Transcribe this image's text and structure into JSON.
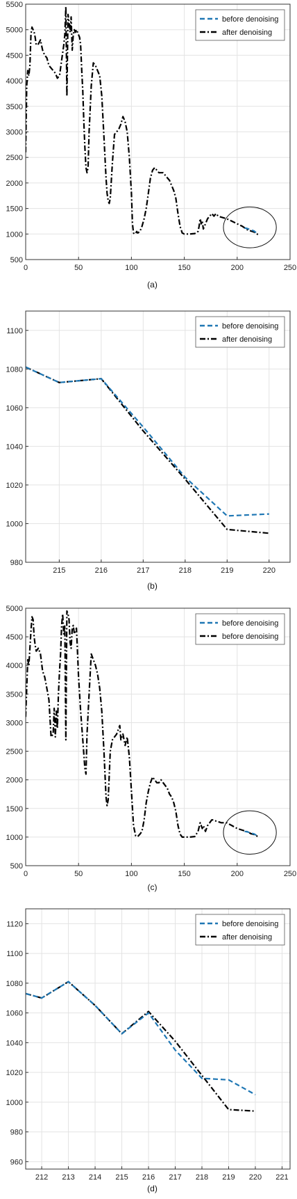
{
  "chart_data": [
    {
      "type": "line",
      "panel_label": "(a)",
      "xlim": [
        0,
        250
      ],
      "ylim": [
        500,
        5500
      ],
      "x_ticks": [
        0,
        50,
        100,
        150,
        200,
        250
      ],
      "y_ticks": [
        500,
        1000,
        1500,
        2000,
        2500,
        3000,
        3500,
        4000,
        4500,
        5000,
        5500
      ],
      "grid": true,
      "legend_position": "top-right",
      "annotation": "circle around x≈200–220",
      "series": [
        {
          "name": "before denoising",
          "color": "#1f77b4",
          "style": "dashed",
          "x": [
            207,
            210,
            213,
            216,
            219,
            220
          ],
          "y": [
            1120,
            1105,
            1080,
            1060,
            1006,
            1005
          ]
        },
        {
          "name": "after denoising",
          "color": "#000000",
          "style": "dash-dot",
          "x": [
            0,
            1,
            2,
            3,
            4,
            5,
            6,
            7,
            8,
            9,
            10,
            12,
            14,
            16,
            18,
            20,
            22,
            24,
            26,
            28,
            30,
            32,
            34,
            36,
            37,
            38,
            39,
            40,
            41,
            42,
            43,
            44,
            45,
            46,
            47,
            48,
            49,
            50,
            51,
            52,
            53,
            54,
            55,
            56,
            57,
            58,
            59,
            60,
            62,
            64,
            66,
            68,
            70,
            72,
            74,
            76,
            77,
            78,
            79,
            80,
            82,
            84,
            86,
            88,
            90,
            92,
            94,
            96,
            98,
            100,
            101,
            102,
            103,
            104,
            105,
            106,
            108,
            110,
            112,
            114,
            116,
            118,
            120,
            122,
            124,
            126,
            128,
            130,
            132,
            134,
            136,
            138,
            140,
            142,
            144,
            146,
            148,
            150,
            155,
            160,
            163,
            164,
            165,
            166,
            167,
            168,
            170,
            172,
            174,
            176,
            178,
            180,
            182,
            185,
            190,
            195,
            200,
            205,
            210,
            213,
            216,
            219,
            220
          ],
          "y": [
            2600,
            3900,
            4200,
            4100,
            4300,
            4900,
            5050,
            5000,
            4950,
            4850,
            4700,
            4720,
            4800,
            4600,
            4500,
            4450,
            4300,
            4250,
            4200,
            4150,
            4050,
            4100,
            4400,
            4700,
            4900,
            5450,
            3700,
            5300,
            5150,
            4950,
            5250,
            4600,
            4900,
            5000,
            4950,
            5000,
            4950,
            4900,
            4850,
            4700,
            4200,
            3800,
            3200,
            2700,
            2300,
            2200,
            2300,
            3000,
            3900,
            4350,
            4300,
            4200,
            4100,
            3700,
            2900,
            2100,
            1800,
            1650,
            1600,
            1700,
            2400,
            2950,
            3000,
            3050,
            3150,
            3300,
            3200,
            3000,
            2500,
            1800,
            1200,
            1020,
            1000,
            1010,
            1050,
            1020,
            1050,
            1150,
            1300,
            1500,
            1800,
            2100,
            2250,
            2300,
            2250,
            2200,
            2200,
            2200,
            2150,
            2100,
            2050,
            1950,
            1850,
            1700,
            1400,
            1150,
            1020,
            1000,
            1000,
            1010,
            1050,
            1150,
            1300,
            1200,
            1250,
            1100,
            1200,
            1300,
            1350,
            1400,
            1350,
            1400,
            1350,
            1330,
            1300,
            1250,
            1200,
            1150,
            1080,
            1060,
            1040,
            997,
            995
          ]
        }
      ]
    },
    {
      "type": "line",
      "panel_label": "(b)",
      "xlim": [
        214.2,
        220.5
      ],
      "ylim": [
        980,
        1110
      ],
      "x_ticks": [
        215,
        216,
        217,
        218,
        219,
        220
      ],
      "y_ticks": [
        980,
        1000,
        1020,
        1040,
        1060,
        1080,
        1100
      ],
      "grid": true,
      "legend_position": "top-right",
      "series": [
        {
          "name": "before denoising",
          "color": "#1f77b4",
          "style": "dashed",
          "x": [
            214.2,
            215,
            216,
            217,
            218,
            219,
            220
          ],
          "y": [
            1081,
            1073,
            1075,
            1050,
            1024,
            1004,
            1005
          ]
        },
        {
          "name": "after denoising",
          "color": "#000000",
          "style": "dash-dot",
          "x": [
            214.2,
            215,
            216,
            217,
            218,
            219,
            220
          ],
          "y": [
            1081,
            1073,
            1075,
            1048,
            1023,
            997,
            995
          ]
        }
      ]
    },
    {
      "type": "line",
      "panel_label": "(c)",
      "xlim": [
        0,
        250
      ],
      "ylim": [
        500,
        5000
      ],
      "x_ticks": [
        0,
        50,
        100,
        150,
        200,
        250
      ],
      "y_ticks": [
        500,
        1000,
        1500,
        2000,
        2500,
        3000,
        3500,
        4000,
        4500,
        5000
      ],
      "grid": true,
      "legend_position": "top-right",
      "annotation": "circle around x≈200–220",
      "series": [
        {
          "name": "before denoising",
          "color": "#1f77b4",
          "style": "dashed",
          "x": [
            207,
            210,
            213,
            216,
            219,
            220
          ],
          "y": [
            1100,
            1090,
            1070,
            1055,
            1020,
            1015
          ]
        },
        {
          "name": "before denoising",
          "color": "#000000",
          "style": "dash-dot",
          "x": [
            0,
            1,
            2,
            3,
            4,
            5,
            6,
            7,
            8,
            9,
            10,
            12,
            14,
            16,
            18,
            20,
            22,
            24,
            26,
            27,
            28,
            29,
            30,
            31,
            32,
            33,
            34,
            35,
            36,
            37,
            38,
            39,
            40,
            41,
            42,
            43,
            44,
            45,
            46,
            47,
            48,
            50,
            52,
            54,
            56,
            57,
            58,
            60,
            62,
            64,
            66,
            68,
            70,
            72,
            74,
            76,
            77,
            78,
            80,
            82,
            84,
            86,
            88,
            89,
            90,
            92,
            94,
            96,
            98,
            100,
            102,
            104,
            106,
            108,
            110,
            112,
            114,
            116,
            118,
            120,
            122,
            124,
            126,
            128,
            130,
            132,
            134,
            136,
            138,
            140,
            142,
            144,
            146,
            148,
            150,
            155,
            160,
            163,
            165,
            167,
            168,
            170,
            172,
            174,
            176,
            178,
            180,
            185,
            190,
            195,
            200,
            205,
            210,
            213,
            216,
            219,
            220
          ],
          "y": [
            3100,
            3600,
            4100,
            4000,
            4300,
            4600,
            4850,
            4800,
            4500,
            4350,
            4250,
            4300,
            4200,
            3900,
            3800,
            3600,
            3400,
            2750,
            2800,
            3250,
            2750,
            3200,
            2900,
            3500,
            3900,
            4200,
            4700,
            4900,
            4550,
            4700,
            2700,
            4950,
            4900,
            4800,
            4400,
            4300,
            4650,
            4700,
            4550,
            4600,
            4650,
            3800,
            3200,
            2700,
            2200,
            2100,
            2800,
            3500,
            4200,
            4100,
            4000,
            3850,
            3600,
            3200,
            2500,
            1700,
            1550,
            1650,
            2500,
            2700,
            2750,
            2800,
            2900,
            2950,
            2700,
            2800,
            2600,
            2750,
            2400,
            1800,
            1200,
            1020,
            1010,
            1050,
            1100,
            1300,
            1600,
            1800,
            1950,
            2050,
            2000,
            1950,
            1950,
            2000,
            1950,
            1900,
            1850,
            1750,
            1700,
            1600,
            1450,
            1200,
            1050,
            1000,
            1000,
            1000,
            1010,
            1100,
            1250,
            1150,
            1200,
            1100,
            1200,
            1250,
            1300,
            1300,
            1280,
            1250,
            1250,
            1200,
            1150,
            1120,
            1090,
            1060,
            1045,
            1015,
            1010
          ]
        }
      ]
    },
    {
      "type": "line",
      "panel_label": "(d)",
      "xlim": [
        211.4,
        221.3
      ],
      "ylim": [
        955,
        1130
      ],
      "x_ticks": [
        212,
        213,
        214,
        215,
        216,
        217,
        218,
        219,
        220,
        221
      ],
      "y_ticks": [
        960,
        980,
        1000,
        1020,
        1040,
        1060,
        1080,
        1100,
        1120
      ],
      "grid": true,
      "legend_position": "top-right",
      "series": [
        {
          "name": "before denoising",
          "color": "#1f77b4",
          "style": "dashed",
          "x": [
            211.4,
            212,
            213,
            214,
            215,
            216,
            217,
            218,
            219,
            220
          ],
          "y": [
            1073,
            1070,
            1081,
            1065,
            1046,
            1060,
            1035,
            1016,
            1015,
            1005
          ]
        },
        {
          "name": "after denoising",
          "color": "#000000",
          "style": "dash-dot",
          "x": [
            211.4,
            212,
            213,
            214,
            215,
            216,
            217,
            218,
            219,
            220
          ],
          "y": [
            1073,
            1070,
            1081,
            1065,
            1046,
            1061,
            1041,
            1018,
            995,
            994
          ]
        }
      ]
    }
  ]
}
